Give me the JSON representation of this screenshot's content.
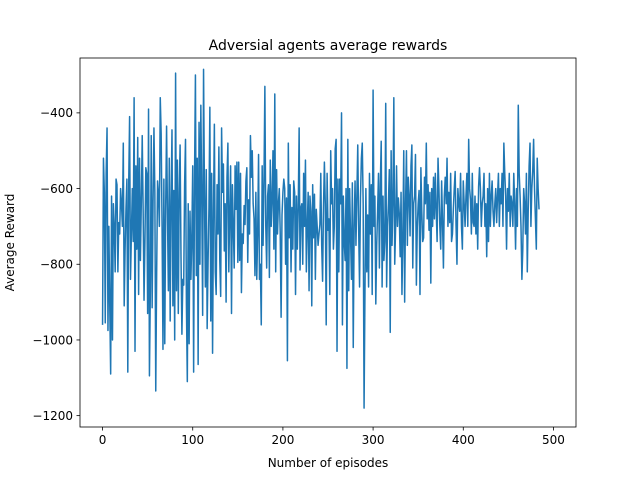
{
  "chart_data": {
    "type": "line",
    "title": "Adversial agents average rewards",
    "xlabel": "Number of episodes",
    "ylabel": "Average Reward",
    "xlim": [
      -25,
      525
    ],
    "ylim": [
      -1230,
      -255
    ],
    "xticks": [
      0,
      100,
      200,
      300,
      400,
      500
    ],
    "yticks": [
      -1200,
      -1000,
      -800,
      -600,
      -400
    ],
    "xtick_labels": [
      "0",
      "100",
      "200",
      "300",
      "400",
      "500"
    ],
    "ytick_labels": [
      "−1200",
      "−1000",
      "−800",
      "−600",
      "−400"
    ],
    "grid": false,
    "series": [
      {
        "color": "#1f77b4",
        "x_start": 0,
        "x_step": 1,
        "values": [
          -960,
          -520,
          -610,
          -955,
          -560,
          -440,
          -975,
          -700,
          -910,
          -1090,
          -620,
          -1000,
          -640,
          -700,
          -820,
          -575,
          -590,
          -820,
          -690,
          -720,
          -600,
          -640,
          -700,
          -480,
          -910,
          -760,
          -655,
          -575,
          -1085,
          -590,
          -410,
          -840,
          -720,
          -600,
          -740,
          -360,
          -1030,
          -540,
          -760,
          -465,
          -880,
          -520,
          -790,
          -635,
          -460,
          -655,
          -895,
          -740,
          -545,
          -560,
          -930,
          -390,
          -1095,
          -870,
          -460,
          -915,
          -640,
          -440,
          -610,
          -1135,
          -825,
          -580,
          -615,
          -700,
          -360,
          -455,
          -700,
          -1025,
          -575,
          -1010,
          -655,
          -435,
          -670,
          -870,
          -520,
          -950,
          -635,
          -445,
          -910,
          -605,
          -1000,
          -295,
          -870,
          -525,
          -930,
          -610,
          -485,
          -780,
          -985,
          -840,
          -855,
          -590,
          -470,
          -905,
          -1110,
          -640,
          -1010,
          -660,
          -840,
          -725,
          -540,
          -1085,
          -570,
          -300,
          -830,
          -520,
          -1065,
          -425,
          -800,
          -380,
          -625,
          -935,
          -285,
          -615,
          -860,
          -550,
          -970,
          -795,
          -650,
          -385,
          -950,
          -560,
          -1035,
          -660,
          -430,
          -820,
          -880,
          -590,
          -720,
          -490,
          -790,
          -885,
          -440,
          -610,
          -535,
          -765,
          -640,
          -900,
          -570,
          -480,
          -820,
          -665,
          -540,
          -930,
          -590,
          -700,
          -810,
          -540,
          -655,
          -530,
          -795,
          -530,
          -790,
          -560,
          -875,
          -720,
          -745,
          -645,
          -695,
          -580,
          -545,
          -795,
          -630,
          -720,
          -460,
          -570,
          -500,
          -640,
          -680,
          -830,
          -610,
          -840,
          -720,
          -510,
          -840,
          -800,
          -960,
          -540,
          -750,
          -580,
          -330,
          -700,
          -810,
          -620,
          -590,
          -835,
          -525,
          -700,
          -630,
          -500,
          -760,
          -350,
          -820,
          -550,
          -720,
          -640,
          -600,
          -715,
          -940,
          -670,
          -610,
          -575,
          -600,
          -800,
          -625,
          -1055,
          -480,
          -730,
          -590,
          -820,
          -650,
          -760,
          -580,
          -610,
          -880,
          -620,
          -760,
          -650,
          -440,
          -815,
          -650,
          -640,
          -800,
          -560,
          -700,
          -525,
          -820,
          -700,
          -610,
          -870,
          -620,
          -660,
          -910,
          -590,
          -730,
          -615,
          -840,
          -655,
          -700,
          -750,
          -720,
          -695,
          -560,
          -750,
          -845,
          -650,
          -530,
          -640,
          -960,
          -560,
          -710,
          -680,
          -880,
          -500,
          -640,
          -600,
          -760,
          -700,
          -495,
          -470,
          -1030,
          -575,
          -820,
          -575,
          -640,
          -400,
          -960,
          -620,
          -740,
          -790,
          -600,
          -1075,
          -470,
          -870,
          -600,
          -725,
          -840,
          -585,
          -1020,
          -700,
          -580,
          -750,
          -620,
          -485,
          -705,
          -860,
          -625,
          -520,
          -480,
          -640,
          -1180,
          -870,
          -600,
          -820,
          -670,
          -860,
          -560,
          -720,
          -590,
          -880,
          -340,
          -700,
          -620,
          -905,
          -750,
          -660,
          -560,
          -810,
          -590,
          -475,
          -860,
          -620,
          -790,
          -740,
          -375,
          -860,
          -700,
          -640,
          -550,
          -980,
          -500,
          -750,
          -640,
          -360,
          -800,
          -700,
          -540,
          -700,
          -625,
          -665,
          -780,
          -610,
          -880,
          -730,
          -500,
          -900,
          -640,
          -500,
          -750,
          -570,
          -620,
          -725,
          -540,
          -485,
          -810,
          -640,
          -620,
          -510,
          -855,
          -700,
          -640,
          -605,
          -880,
          -545,
          -660,
          -740,
          -730,
          -570,
          -640,
          -480,
          -680,
          -590,
          -710,
          -610,
          -850,
          -600,
          -700,
          -570,
          -680,
          -560,
          -660,
          -740,
          -520,
          -600,
          -700,
          -760,
          -580,
          -690,
          -810,
          -620,
          -570,
          -640,
          -520,
          -700,
          -610,
          -690,
          -560,
          -740,
          -720,
          -655,
          -600,
          -555,
          -700,
          -800,
          -600,
          -640,
          -660,
          -560,
          -700,
          -760,
          -580,
          -640,
          -700,
          -620,
          -560,
          -700,
          -470,
          -600,
          -630,
          -720,
          -560,
          -690,
          -700,
          -620,
          -720,
          -640,
          -760,
          -595,
          -545,
          -600,
          -700,
          -640,
          -620,
          -560,
          -700,
          -640,
          -780,
          -600,
          -740,
          -560,
          -700,
          -620,
          -580,
          -660,
          -700,
          -640,
          -600,
          -690,
          -620,
          -560,
          -700,
          -600,
          -640,
          -560,
          -700,
          -480,
          -560,
          -620,
          -760,
          -600,
          -660,
          -560,
          -700,
          -620,
          -640,
          -700,
          -560,
          -640,
          -760,
          -600,
          -700,
          -380,
          -560,
          -620,
          -700,
          -840,
          -760,
          -600,
          -640,
          -720,
          -560,
          -820,
          -660,
          -540,
          -480,
          -700,
          -600,
          -555,
          -470,
          -600,
          -680,
          -760,
          -520,
          -600,
          -655
        ]
      }
    ]
  }
}
